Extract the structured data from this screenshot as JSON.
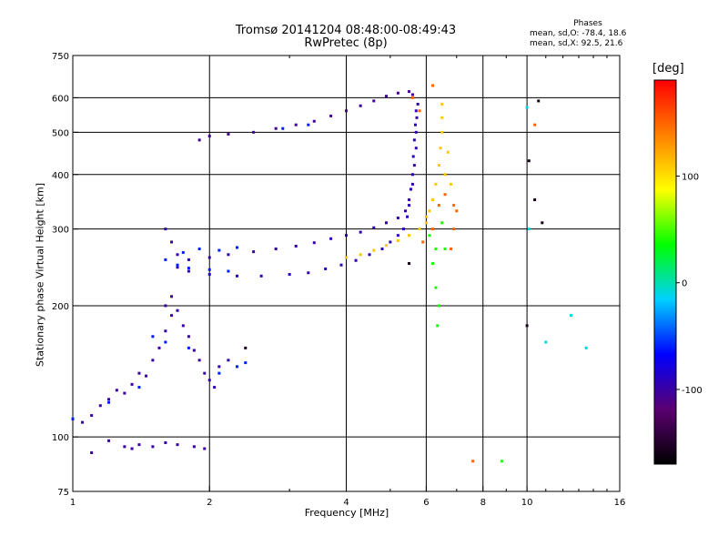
{
  "title_line1": "Tromsø 20141204 08:48:00-08:49:43",
  "title_line2": "RwPretec (8p)",
  "stats": {
    "heading": "Phases",
    "line1": "mean, sd,O: -78.4, 18.6",
    "line2": "mean, sd,X:  92.5, 21.6"
  },
  "colorbar": {
    "title": "[deg]",
    "range": [
      -170,
      190
    ],
    "ticks": [
      {
        "value": 100,
        "label": "100"
      },
      {
        "value": 0,
        "label": "0"
      },
      {
        "value": -100,
        "label": "-100"
      }
    ],
    "colors": [
      "#000000",
      "#5a0070",
      "#0000ff",
      "#00d0ff",
      "#00ff00",
      "#ffff00",
      "#ff8000",
      "#ff0000"
    ]
  },
  "chart_data": {
    "type": "scatter",
    "xlabel": "Frequency [MHz]",
    "ylabel": "Stationary phase Virtual Height [km]",
    "x_scale": "log",
    "y_scale": "log",
    "xlim": [
      1,
      16
    ],
    "ylim": [
      75,
      750
    ],
    "grid": true,
    "x_ticks": [
      {
        "value": 1,
        "label": "1",
        "grid": false
      },
      {
        "value": 2,
        "label": "2",
        "grid": true
      },
      {
        "value": 4,
        "label": "4",
        "grid": true
      },
      {
        "value": 6,
        "label": "6",
        "grid": true
      },
      {
        "value": 8,
        "label": "8",
        "grid": true
      },
      {
        "value": 10,
        "label": "10",
        "grid": true
      },
      {
        "value": 16,
        "label": "16",
        "grid": false
      }
    ],
    "y_ticks": [
      {
        "value": 75,
        "label": "75",
        "grid": false
      },
      {
        "value": 100,
        "label": "100",
        "grid": true
      },
      {
        "value": 200,
        "label": "200",
        "grid": true
      },
      {
        "value": 300,
        "label": "300",
        "grid": true
      },
      {
        "value": 400,
        "label": "400",
        "grid": true
      },
      {
        "value": 500,
        "label": "500",
        "grid": true
      },
      {
        "value": 600,
        "label": "600",
        "grid": true
      },
      {
        "value": 750,
        "label": "750",
        "grid": false
      }
    ],
    "series": [
      {
        "phase": -100,
        "points": [
          [
            1.0,
            110
          ],
          [
            1.05,
            108
          ],
          [
            1.1,
            112
          ],
          [
            1.15,
            118
          ],
          [
            1.2,
            122
          ],
          [
            1.25,
            128
          ],
          [
            1.3,
            126
          ],
          [
            1.35,
            132
          ],
          [
            1.4,
            140
          ],
          [
            1.45,
            138
          ],
          [
            1.5,
            150
          ],
          [
            1.55,
            160
          ],
          [
            1.6,
            175
          ],
          [
            1.65,
            190
          ],
          [
            1.6,
            200
          ],
          [
            1.65,
            210
          ],
          [
            1.7,
            195
          ],
          [
            1.75,
            180
          ],
          [
            1.8,
            170
          ],
          [
            1.85,
            158
          ],
          [
            1.9,
            150
          ],
          [
            1.95,
            140
          ],
          [
            2.0,
            135
          ],
          [
            2.05,
            130
          ],
          [
            2.1,
            145
          ],
          [
            2.2,
            150
          ],
          [
            1.3,
            95
          ],
          [
            1.35,
            94
          ],
          [
            1.4,
            96
          ],
          [
            1.5,
            95
          ],
          [
            1.6,
            97
          ],
          [
            1.7,
            96
          ],
          [
            1.85,
            95
          ],
          [
            1.95,
            94
          ],
          [
            1.2,
            98
          ],
          [
            1.1,
            92
          ]
        ]
      },
      {
        "phase": -105,
        "points": [
          [
            1.9,
            480
          ],
          [
            2.0,
            490
          ],
          [
            2.2,
            495
          ],
          [
            2.5,
            500
          ],
          [
            2.8,
            510
          ],
          [
            3.1,
            520
          ],
          [
            3.4,
            530
          ],
          [
            3.7,
            545
          ],
          [
            4.0,
            560
          ],
          [
            4.3,
            575
          ],
          [
            4.6,
            590
          ],
          [
            4.9,
            605
          ],
          [
            5.2,
            615
          ],
          [
            5.5,
            620
          ],
          [
            5.6,
            610
          ]
        ]
      },
      {
        "phase": -98,
        "points": [
          [
            1.6,
            300
          ],
          [
            1.65,
            280
          ],
          [
            1.7,
            262
          ],
          [
            1.8,
            255
          ],
          [
            2.0,
            258
          ],
          [
            2.2,
            262
          ],
          [
            2.5,
            266
          ],
          [
            2.8,
            270
          ],
          [
            3.1,
            274
          ],
          [
            3.4,
            279
          ],
          [
            3.7,
            285
          ],
          [
            4.0,
            290
          ],
          [
            4.3,
            295
          ],
          [
            4.6,
            302
          ],
          [
            4.9,
            310
          ],
          [
            5.2,
            318
          ],
          [
            5.4,
            330
          ],
          [
            5.5,
            350
          ],
          [
            5.6,
            380
          ],
          [
            5.65,
            420
          ],
          [
            5.7,
            460
          ],
          [
            5.7,
            500
          ],
          [
            5.72,
            540
          ],
          [
            5.75,
            580
          ]
        ]
      },
      {
        "phase": -92,
        "points": [
          [
            1.7,
            245
          ],
          [
            1.8,
            240
          ],
          [
            2.0,
            236
          ],
          [
            2.3,
            234
          ],
          [
            2.6,
            234
          ],
          [
            3.0,
            236
          ],
          [
            3.3,
            238
          ],
          [
            3.6,
            243
          ],
          [
            3.9,
            248
          ],
          [
            4.2,
            254
          ],
          [
            4.5,
            262
          ],
          [
            4.8,
            270
          ],
          [
            5.0,
            280
          ],
          [
            5.2,
            290
          ],
          [
            5.35,
            300
          ],
          [
            5.45,
            320
          ],
          [
            5.5,
            340
          ],
          [
            5.55,
            370
          ],
          [
            5.6,
            400
          ],
          [
            5.62,
            440
          ],
          [
            5.65,
            480
          ],
          [
            5.68,
            520
          ],
          [
            5.7,
            560
          ]
        ]
      },
      {
        "phase": -60,
        "points": [
          [
            1.6,
            255
          ],
          [
            1.7,
            248
          ],
          [
            1.8,
            244
          ],
          [
            2.0,
            242
          ],
          [
            2.2,
            240
          ],
          [
            1.75,
            265
          ],
          [
            1.9,
            270
          ],
          [
            2.1,
            268
          ],
          [
            2.3,
            272
          ],
          [
            1.5,
            170
          ],
          [
            1.6,
            165
          ],
          [
            1.8,
            160
          ],
          [
            2.1,
            140
          ],
          [
            2.3,
            145
          ],
          [
            2.4,
            148
          ],
          [
            1.4,
            130
          ],
          [
            1.2,
            120
          ],
          [
            1.0,
            110
          ],
          [
            2.9,
            510
          ],
          [
            3.3,
            520
          ]
        ]
      },
      {
        "phase": 110,
        "points": [
          [
            4.0,
            258
          ],
          [
            4.3,
            262
          ],
          [
            4.6,
            268
          ],
          [
            4.9,
            275
          ],
          [
            5.2,
            282
          ],
          [
            5.5,
            290
          ],
          [
            5.8,
            300
          ],
          [
            6.0,
            320
          ],
          [
            6.2,
            350
          ],
          [
            6.3,
            380
          ],
          [
            6.4,
            420
          ],
          [
            6.45,
            460
          ],
          [
            6.5,
            500
          ],
          [
            6.5,
            540
          ],
          [
            6.5,
            580
          ],
          [
            6.0,
            310
          ],
          [
            6.1,
            330
          ],
          [
            6.6,
            400
          ],
          [
            6.7,
            450
          ],
          [
            6.8,
            380
          ]
        ]
      },
      {
        "phase": 150,
        "points": [
          [
            5.6,
            600
          ],
          [
            5.8,
            560
          ],
          [
            6.2,
            300
          ],
          [
            6.4,
            340
          ],
          [
            6.6,
            360
          ],
          [
            6.9,
            340
          ],
          [
            7.0,
            330
          ],
          [
            6.8,
            270
          ],
          [
            5.9,
            280
          ],
          [
            6.9,
            300
          ],
          [
            6.2,
            640
          ],
          [
            7.6,
            88
          ],
          [
            10.4,
            520
          ]
        ]
      },
      {
        "phase": 40,
        "points": [
          [
            6.2,
            250
          ],
          [
            6.3,
            270
          ],
          [
            6.1,
            290
          ],
          [
            6.5,
            310
          ],
          [
            6.6,
            270
          ],
          [
            6.3,
            220
          ],
          [
            6.4,
            200
          ],
          [
            6.35,
            180
          ],
          [
            8.8,
            88
          ]
        ]
      },
      {
        "phase": -10,
        "points": [
          [
            10.0,
            570
          ],
          [
            10.1,
            300
          ],
          [
            12.5,
            190
          ],
          [
            13.5,
            160
          ],
          [
            11.0,
            165
          ]
        ]
      },
      {
        "phase": -160,
        "points": [
          [
            2.4,
            160
          ],
          [
            5.5,
            250
          ],
          [
            10.0,
            180
          ],
          [
            10.1,
            430
          ],
          [
            10.6,
            590
          ],
          [
            10.4,
            350
          ],
          [
            10.8,
            310
          ]
        ]
      }
    ]
  }
}
